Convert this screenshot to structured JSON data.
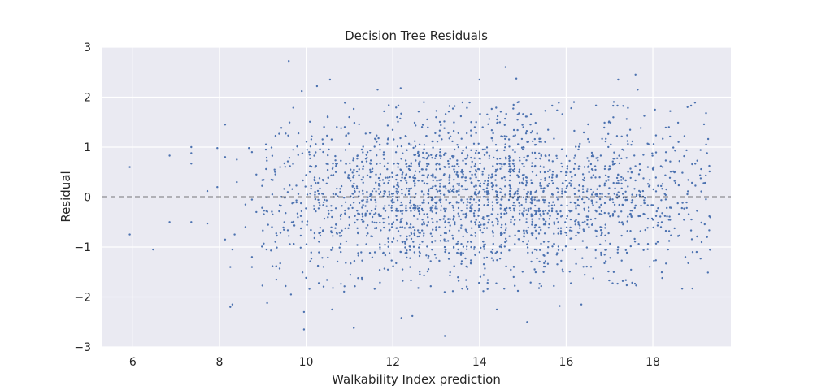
{
  "chart_data": {
    "type": "scatter",
    "title": "Decision Tree Residuals",
    "xlabel": "Walkability Index prediction",
    "ylabel": "Residual",
    "xlim": [
      5.3,
      19.8
    ],
    "ylim": [
      -3,
      3
    ],
    "xticks": [
      6,
      8,
      10,
      12,
      14,
      16,
      18
    ],
    "yticks": [
      -3,
      -2,
      -1,
      0,
      1,
      2,
      3
    ],
    "ytick_labels": [
      "−3",
      "−2",
      "−1",
      "0",
      "1",
      "2",
      "3"
    ],
    "grid": true,
    "background": "#eaeaf2",
    "point_color": "#4c72b0",
    "reference_line": {
      "y": 0,
      "style": "dashed",
      "color": "#000000"
    },
    "series": [
      {
        "points": [
          [
            5.93,
            0.6
          ],
          [
            5.93,
            -0.75
          ],
          [
            6.47,
            -1.05
          ],
          [
            6.85,
            0.83
          ],
          [
            6.85,
            -0.5
          ],
          [
            7.35,
            1.0
          ],
          [
            7.35,
            0.88
          ],
          [
            7.35,
            0.67
          ],
          [
            7.35,
            -0.5
          ],
          [
            7.72,
            0.12
          ],
          [
            7.72,
            -0.53
          ],
          [
            7.95,
            0.98
          ],
          [
            7.95,
            0.2
          ],
          [
            8.13,
            1.45
          ],
          [
            8.13,
            0.8
          ],
          [
            8.13,
            -0.85
          ],
          [
            8.25,
            -2.2
          ],
          [
            8.3,
            -2.15
          ],
          [
            8.25,
            -1.4
          ],
          [
            8.3,
            -1.05
          ],
          [
            8.35,
            -0.75
          ],
          [
            8.4,
            0.75
          ],
          [
            8.4,
            0.3
          ],
          [
            8.6,
            -0.15
          ],
          [
            8.6,
            -0.6
          ],
          [
            8.68,
            0.98
          ],
          [
            8.75,
            0.9
          ],
          [
            8.75,
            -1.2
          ],
          [
            8.75,
            -1.4
          ],
          [
            8.75,
            -0.05
          ],
          [
            8.85,
            0.45
          ],
          [
            8.85,
            -0.3
          ],
          [
            9.6,
            2.72
          ],
          [
            9.9,
            2.12
          ],
          [
            10.25,
            2.22
          ],
          [
            10.55,
            2.35
          ],
          [
            9.1,
            -2.12
          ],
          [
            9.65,
            -1.95
          ],
          [
            9.95,
            -2.3
          ],
          [
            9.95,
            -2.65
          ],
          [
            10.6,
            -2.25
          ],
          [
            11.1,
            -2.62
          ],
          [
            11.65,
            2.15
          ],
          [
            12.18,
            2.18
          ],
          [
            12.2,
            -2.42
          ],
          [
            12.45,
            -2.38
          ],
          [
            13.2,
            -2.78
          ],
          [
            14.0,
            2.35
          ],
          [
            14.6,
            2.6
          ],
          [
            14.85,
            2.37
          ],
          [
            14.4,
            -2.25
          ],
          [
            15.1,
            -2.5
          ],
          [
            15.85,
            -2.18
          ],
          [
            16.35,
            -2.15
          ],
          [
            17.2,
            2.35
          ],
          [
            17.6,
            2.45
          ],
          [
            17.65,
            2.15
          ],
          [
            18.05,
            1.75
          ],
          [
            18.4,
            1.72
          ],
          [
            18.8,
            1.8
          ],
          [
            18.75,
            -1.2
          ],
          [
            18.35,
            -1.05
          ],
          [
            19.25,
            0.88
          ],
          [
            19.25,
            -0.8
          ]
        ],
        "dense_band": {
          "x_from": 9.0,
          "x_to": 19.3,
          "y_from": -1.9,
          "y_to": 1.9,
          "spacing": 0.1
        }
      }
    ]
  }
}
